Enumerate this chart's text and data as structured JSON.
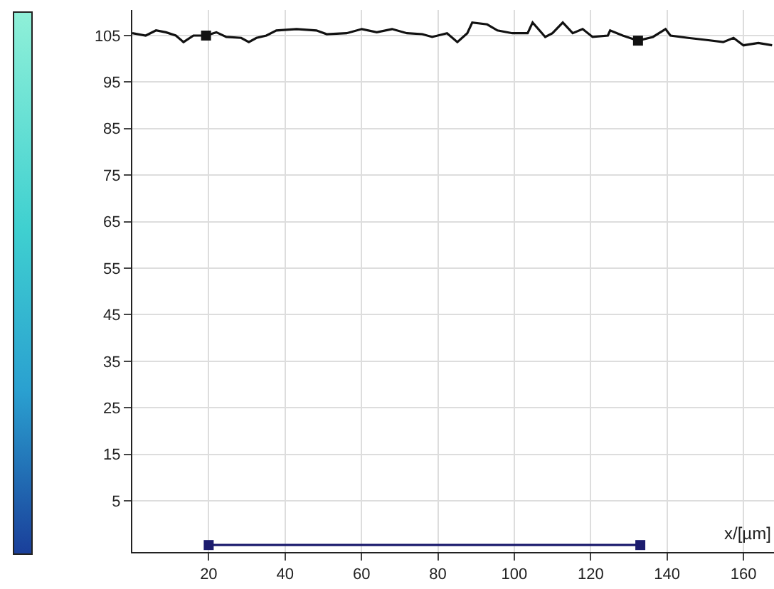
{
  "chart_data": {
    "type": "line",
    "xlabel": "x/[µm]",
    "xlim": [
      0,
      168
    ],
    "ylim": [
      -6,
      110.5
    ],
    "xticks": [
      20,
      40,
      60,
      80,
      100,
      120,
      140,
      160
    ],
    "yticks": [
      5,
      15,
      25,
      35,
      45,
      55,
      65,
      75,
      85,
      95,
      105
    ],
    "grid": true,
    "line_style": "solid",
    "series": [
      {
        "color": "#111111",
        "marker": "none",
        "x": [
          0,
          3.5,
          6.2,
          8.8,
          11.4,
          13.4,
          16.0,
          19.3,
          22.0,
          24.6,
          28.5,
          30.5,
          32.5,
          35.1,
          37.7,
          43.0,
          48.2,
          50.9,
          56.1,
          60.1,
          64.0,
          68.0,
          71.9,
          75.9,
          78.5,
          82.4,
          85.1,
          87.7,
          89.0,
          92.9,
          95.6,
          99.5,
          103.5,
          104.8,
          108.1,
          110.0,
          112.7,
          115.3,
          117.9,
          120.5,
          124.5,
          125.1,
          128.4,
          132.4,
          136.3,
          139.6,
          140.9,
          145.5,
          150.8,
          154.7,
          157.4,
          160.0,
          163.9,
          167.5
        ],
        "values": [
          105.5,
          105.0,
          106.1,
          105.7,
          105.0,
          103.6,
          105.0,
          105.0,
          105.7,
          104.7,
          104.5,
          103.6,
          104.5,
          105.0,
          106.1,
          106.4,
          106.1,
          105.3,
          105.5,
          106.4,
          105.7,
          106.4,
          105.5,
          105.3,
          104.7,
          105.5,
          103.6,
          105.5,
          107.8,
          107.4,
          106.1,
          105.5,
          105.5,
          107.8,
          104.7,
          105.5,
          107.8,
          105.5,
          106.4,
          104.7,
          105.0,
          106.1,
          105.0,
          103.9,
          104.7,
          106.4,
          105.0,
          104.5,
          104.0,
          103.6,
          104.5,
          102.9,
          103.4,
          102.9
        ]
      },
      {
        "type": "scatter",
        "color": "#111111",
        "marker": "square",
        "x": [
          19.3,
          132.4
        ],
        "values": [
          105.0,
          103.9
        ]
      },
      {
        "color": "#1c1c6e",
        "marker": "square",
        "x": [
          20,
          133
        ],
        "values": [
          -4.5,
          -4.5
        ]
      }
    ]
  }
}
